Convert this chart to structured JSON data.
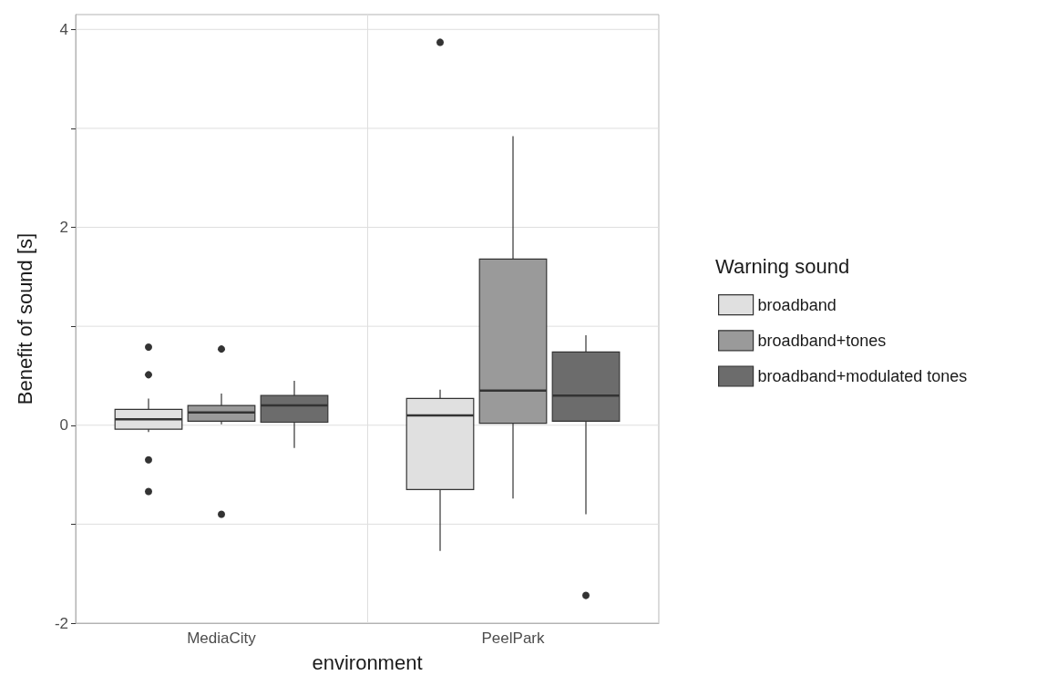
{
  "chart_data": {
    "type": "box",
    "xlabel": "environment",
    "ylabel": "Benefit of sound [s]",
    "legend_title": "Warning sound",
    "categories": [
      "MediaCity",
      "PeelPark"
    ],
    "series": [
      {
        "name": "broadband",
        "color": "#e0e0e0",
        "boxes": [
          {
            "low": -0.07,
            "q1": -0.04,
            "median": 0.06,
            "q3": 0.16,
            "high": 0.27,
            "outliers": [
              0.79,
              0.51,
              -0.35,
              -0.67
            ]
          },
          {
            "low": -1.27,
            "q1": -0.65,
            "median": 0.1,
            "q3": 0.27,
            "high": 0.36,
            "outliers": [
              3.87
            ]
          }
        ]
      },
      {
        "name": "broadband+tones",
        "color": "#9a9a9a",
        "boxes": [
          {
            "low": 0.01,
            "q1": 0.04,
            "median": 0.13,
            "q3": 0.2,
            "high": 0.32,
            "outliers": [
              0.77,
              -0.9
            ]
          },
          {
            "low": -0.74,
            "q1": 0.02,
            "median": 0.35,
            "q3": 1.68,
            "high": 2.92
          }
        ]
      },
      {
        "name": "broadband+modulated tones",
        "color": "#6c6c6c",
        "boxes": [
          {
            "low": -0.23,
            "q1": 0.03,
            "median": 0.2,
            "q3": 0.3,
            "high": 0.45
          },
          {
            "low": -0.9,
            "q1": 0.04,
            "median": 0.3,
            "q3": 0.74,
            "high": 0.91,
            "outliers": [
              -1.72
            ]
          }
        ]
      }
    ],
    "ylim": [
      -2,
      4.15
    ],
    "yticks": [
      -2,
      {
        "value": -1,
        "label": null
      },
      0,
      {
        "value": 1,
        "label": null
      },
      2,
      {
        "value": 3,
        "label": null
      },
      4
    ],
    "grid": true,
    "legend": "right"
  }
}
